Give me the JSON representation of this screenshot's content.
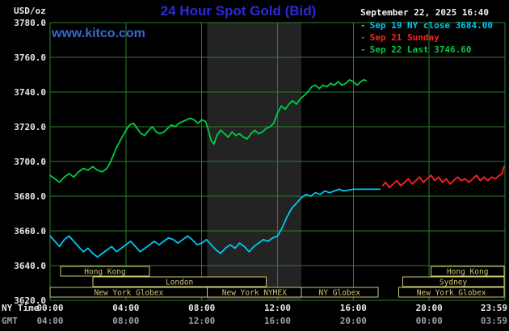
{
  "header": {
    "unit": "USD/oz",
    "title": "24 Hour Spot Gold (Bid)",
    "timestamp": "September 22, 2025 16:40",
    "website": "www.kitco.com"
  },
  "legend": {
    "items": [
      {
        "marker": "-",
        "label": "Sep 19 NY close 3684.00",
        "color": "#00c8f0"
      },
      {
        "marker": "-",
        "label": "Sep 21 Sunday",
        "color": "#ff2222"
      },
      {
        "marker": "-",
        "label": "Sep 22 Last 3746.60",
        "color": "#00cc44"
      }
    ]
  },
  "axes": {
    "ny_time_label": "NY Time",
    "gmt_label": "GMT"
  },
  "chart_data": {
    "type": "line",
    "title": "24 Hour Spot Gold (Bid)",
    "ylabel": "USD/oz",
    "ylim": [
      3620,
      3780
    ],
    "xlim_hours": [
      0,
      24
    ],
    "grid": true,
    "grid_color": "#2e7d2e",
    "band": {
      "start": 8.3,
      "end": 13.25,
      "color": "#232323"
    },
    "session_color": "#cdc673",
    "y_ticks": [
      {
        "v": 3620,
        "label": "3620.0"
      },
      {
        "v": 3640,
        "label": "3640.0"
      },
      {
        "v": 3660,
        "label": "3660.0"
      },
      {
        "v": 3680,
        "label": "3680.0"
      },
      {
        "v": 3700,
        "label": "3700.0"
      },
      {
        "v": 3720,
        "label": "3720.0"
      },
      {
        "v": 3740,
        "label": "3740.0"
      },
      {
        "v": 3760,
        "label": "3760.0"
      },
      {
        "v": 3780,
        "label": "3780.0"
      }
    ],
    "x_ticks": [
      {
        "hour": 0,
        "ny": "00:00",
        "gmt": "04:00",
        "grid": false
      },
      {
        "hour": 4,
        "ny": "04:00",
        "gmt": "08:00",
        "grid": true
      },
      {
        "hour": 8,
        "ny": "08:00",
        "gmt": "12:00",
        "grid": true
      },
      {
        "hour": 12,
        "ny": "12:00",
        "gmt": "16:00",
        "grid": true
      },
      {
        "hour": 16,
        "ny": "16:00",
        "gmt": "20:00",
        "grid": true
      },
      {
        "hour": 20,
        "ny": "20:00",
        "gmt": "00:00",
        "grid": true
      },
      {
        "hour": 23.983,
        "ny": "23:59",
        "gmt": "03:59",
        "grid": false
      }
    ],
    "sessions": [
      {
        "label": "Hong Kong",
        "row": 0,
        "start": 0.55,
        "end": 5.25
      },
      {
        "label": "Hong Kong",
        "row": 0,
        "start": 20.1,
        "end": 23.95
      },
      {
        "label": "London",
        "row": 1,
        "start": 2.25,
        "end": 11.4
      },
      {
        "label": "Sydney",
        "row": 1,
        "start": 18.6,
        "end": 23.95
      },
      {
        "label": "New York Globex",
        "row": 2,
        "start": 0.0,
        "end": 8.3
      },
      {
        "label": "New York NYMEX",
        "row": 2,
        "start": 8.3,
        "end": 13.25
      },
      {
        "label": "NY Globex",
        "row": 2,
        "start": 13.25,
        "end": 17.3
      },
      {
        "label": "New York Globex",
        "row": 2,
        "start": 18.4,
        "end": 23.95
      }
    ],
    "series": [
      {
        "id": "sep19",
        "name": "Sep 19 NY close",
        "close": 3684.0,
        "color": "#00c8f0",
        "points": [
          [
            0.0,
            3657
          ],
          [
            0.25,
            3654
          ],
          [
            0.5,
            3651
          ],
          [
            0.75,
            3655
          ],
          [
            1.0,
            3657
          ],
          [
            1.25,
            3654
          ],
          [
            1.5,
            3651
          ],
          [
            1.75,
            3648
          ],
          [
            2.0,
            3650
          ],
          [
            2.25,
            3647
          ],
          [
            2.5,
            3645
          ],
          [
            2.75,
            3647
          ],
          [
            3.0,
            3649
          ],
          [
            3.25,
            3651
          ],
          [
            3.5,
            3648
          ],
          [
            3.75,
            3650
          ],
          [
            4.0,
            3652
          ],
          [
            4.25,
            3654
          ],
          [
            4.5,
            3651
          ],
          [
            4.75,
            3648
          ],
          [
            5.0,
            3650
          ],
          [
            5.25,
            3652
          ],
          [
            5.5,
            3654
          ],
          [
            5.75,
            3652
          ],
          [
            6.0,
            3654
          ],
          [
            6.25,
            3656
          ],
          [
            6.5,
            3655
          ],
          [
            6.75,
            3653
          ],
          [
            7.0,
            3655
          ],
          [
            7.25,
            3657
          ],
          [
            7.5,
            3655
          ],
          [
            7.75,
            3652
          ],
          [
            8.0,
            3653
          ],
          [
            8.25,
            3655
          ],
          [
            8.5,
            3652
          ],
          [
            8.75,
            3649
          ],
          [
            9.0,
            3647
          ],
          [
            9.25,
            3650
          ],
          [
            9.5,
            3652
          ],
          [
            9.75,
            3650
          ],
          [
            10.0,
            3653
          ],
          [
            10.25,
            3651
          ],
          [
            10.5,
            3648
          ],
          [
            10.75,
            3651
          ],
          [
            11.0,
            3653
          ],
          [
            11.25,
            3655
          ],
          [
            11.5,
            3654
          ],
          [
            11.75,
            3656
          ],
          [
            12.0,
            3657
          ],
          [
            12.25,
            3662
          ],
          [
            12.5,
            3668
          ],
          [
            12.75,
            3673
          ],
          [
            13.0,
            3676
          ],
          [
            13.25,
            3679
          ],
          [
            13.5,
            3681
          ],
          [
            13.75,
            3680
          ],
          [
            14.0,
            3682
          ],
          [
            14.25,
            3681
          ],
          [
            14.5,
            3683
          ],
          [
            14.75,
            3682
          ],
          [
            15.0,
            3683
          ],
          [
            15.25,
            3684
          ],
          [
            15.5,
            3683
          ],
          [
            16.0,
            3684
          ],
          [
            16.5,
            3684
          ],
          [
            17.0,
            3684
          ],
          [
            17.4,
            3684
          ]
        ]
      },
      {
        "id": "sep21",
        "name": "Sep 21 Sunday",
        "color": "#ff2222",
        "points": [
          [
            17.55,
            3686
          ],
          [
            17.7,
            3688
          ],
          [
            17.9,
            3685
          ],
          [
            18.1,
            3687
          ],
          [
            18.3,
            3689
          ],
          [
            18.5,
            3686
          ],
          [
            18.7,
            3688
          ],
          [
            18.9,
            3690
          ],
          [
            19.1,
            3687
          ],
          [
            19.3,
            3689
          ],
          [
            19.5,
            3691
          ],
          [
            19.7,
            3688
          ],
          [
            19.9,
            3690
          ],
          [
            20.1,
            3692
          ],
          [
            20.3,
            3689
          ],
          [
            20.5,
            3691
          ],
          [
            20.7,
            3688
          ],
          [
            20.9,
            3690
          ],
          [
            21.1,
            3687
          ],
          [
            21.3,
            3689
          ],
          [
            21.5,
            3691
          ],
          [
            21.7,
            3689
          ],
          [
            21.9,
            3690
          ],
          [
            22.1,
            3688
          ],
          [
            22.3,
            3690
          ],
          [
            22.5,
            3692
          ],
          [
            22.7,
            3689
          ],
          [
            22.9,
            3691
          ],
          [
            23.1,
            3689
          ],
          [
            23.3,
            3691
          ],
          [
            23.5,
            3690
          ],
          [
            23.7,
            3692
          ],
          [
            23.85,
            3693
          ],
          [
            23.95,
            3697
          ]
        ]
      },
      {
        "id": "sep22",
        "name": "Sep 22",
        "last": 3746.6,
        "color": "#00cc44",
        "points": [
          [
            0.0,
            3692
          ],
          [
            0.25,
            3690
          ],
          [
            0.5,
            3688
          ],
          [
            0.75,
            3691
          ],
          [
            1.0,
            3693
          ],
          [
            1.25,
            3691
          ],
          [
            1.5,
            3694
          ],
          [
            1.75,
            3696
          ],
          [
            2.0,
            3695
          ],
          [
            2.25,
            3697
          ],
          [
            2.5,
            3695
          ],
          [
            2.75,
            3694
          ],
          [
            3.0,
            3696
          ],
          [
            3.2,
            3700
          ],
          [
            3.5,
            3708
          ],
          [
            3.8,
            3714
          ],
          [
            4.0,
            3718
          ],
          [
            4.2,
            3721
          ],
          [
            4.4,
            3722
          ],
          [
            4.6,
            3719
          ],
          [
            4.8,
            3716
          ],
          [
            5.0,
            3715
          ],
          [
            5.2,
            3718
          ],
          [
            5.4,
            3720
          ],
          [
            5.6,
            3717
          ],
          [
            5.8,
            3716
          ],
          [
            6.0,
            3717
          ],
          [
            6.2,
            3719
          ],
          [
            6.4,
            3721
          ],
          [
            6.6,
            3720
          ],
          [
            6.8,
            3722
          ],
          [
            7.0,
            3723
          ],
          [
            7.2,
            3724
          ],
          [
            7.4,
            3725
          ],
          [
            7.6,
            3724
          ],
          [
            7.8,
            3722
          ],
          [
            8.0,
            3724
          ],
          [
            8.2,
            3723
          ],
          [
            8.35,
            3718
          ],
          [
            8.5,
            3712
          ],
          [
            8.65,
            3710
          ],
          [
            8.8,
            3715
          ],
          [
            9.0,
            3718
          ],
          [
            9.2,
            3716
          ],
          [
            9.4,
            3714
          ],
          [
            9.6,
            3717
          ],
          [
            9.8,
            3715
          ],
          [
            10.0,
            3716
          ],
          [
            10.2,
            3714
          ],
          [
            10.4,
            3713
          ],
          [
            10.6,
            3716
          ],
          [
            10.8,
            3718
          ],
          [
            11.0,
            3716
          ],
          [
            11.2,
            3717
          ],
          [
            11.4,
            3719
          ],
          [
            11.6,
            3720
          ],
          [
            11.8,
            3722
          ],
          [
            12.0,
            3728
          ],
          [
            12.2,
            3732
          ],
          [
            12.4,
            3730
          ],
          [
            12.6,
            3733
          ],
          [
            12.8,
            3735
          ],
          [
            13.0,
            3733
          ],
          [
            13.2,
            3736
          ],
          [
            13.4,
            3738
          ],
          [
            13.6,
            3740
          ],
          [
            13.8,
            3743
          ],
          [
            14.0,
            3744
          ],
          [
            14.2,
            3742
          ],
          [
            14.4,
            3744
          ],
          [
            14.6,
            3743
          ],
          [
            14.8,
            3745
          ],
          [
            15.0,
            3744
          ],
          [
            15.2,
            3746
          ],
          [
            15.4,
            3744
          ],
          [
            15.6,
            3745
          ],
          [
            15.8,
            3747
          ],
          [
            16.0,
            3746
          ],
          [
            16.2,
            3744
          ],
          [
            16.4,
            3746
          ],
          [
            16.55,
            3747
          ],
          [
            16.67,
            3746.6
          ]
        ]
      }
    ]
  }
}
